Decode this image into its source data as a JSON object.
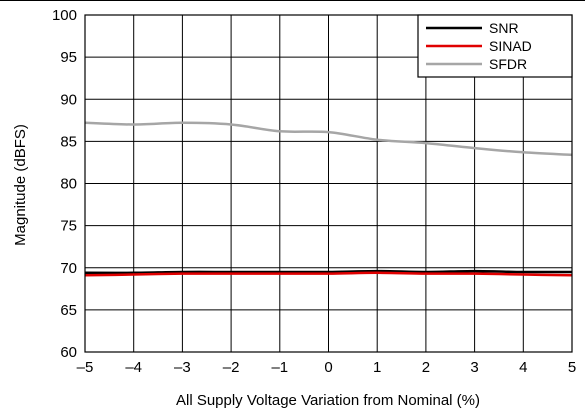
{
  "chart_data": {
    "type": "line",
    "title": "",
    "xlabel": "All Supply Voltage Variation from Nominal (%)",
    "ylabel": "Magnitude (dBFS)",
    "xlim": [
      -5,
      5
    ],
    "ylim": [
      60,
      100
    ],
    "x_ticks": [
      "–5",
      "–4",
      "–3",
      "–2",
      "–1",
      "0",
      "1",
      "2",
      "3",
      "4",
      "5"
    ],
    "y_ticks": [
      "60",
      "65",
      "70",
      "75",
      "80",
      "85",
      "90",
      "95",
      "100"
    ],
    "grid": true,
    "legend_position": "top-right",
    "series": [
      {
        "name": "SNR",
        "color": "#000000",
        "x": [
          -5,
          -4,
          -3,
          -2,
          -1,
          0,
          1,
          2,
          3,
          4,
          5
        ],
        "y": [
          69.4,
          69.4,
          69.5,
          69.5,
          69.5,
          69.5,
          69.6,
          69.5,
          69.6,
          69.5,
          69.5
        ]
      },
      {
        "name": "SINAD",
        "color": "#e00000",
        "x": [
          -5,
          -4,
          -3,
          -2,
          -1,
          0,
          1,
          2,
          3,
          4,
          5
        ],
        "y": [
          69.1,
          69.2,
          69.3,
          69.3,
          69.3,
          69.3,
          69.4,
          69.3,
          69.3,
          69.2,
          69.1
        ]
      },
      {
        "name": "SFDR",
        "color": "#a6a6a6",
        "x": [
          -5,
          -4,
          -3,
          -2,
          -1,
          0,
          1,
          2,
          3,
          4,
          5
        ],
        "y": [
          87.2,
          87.0,
          87.2,
          87.0,
          86.2,
          86.1,
          85.2,
          84.8,
          84.2,
          83.7,
          83.4
        ]
      }
    ]
  }
}
